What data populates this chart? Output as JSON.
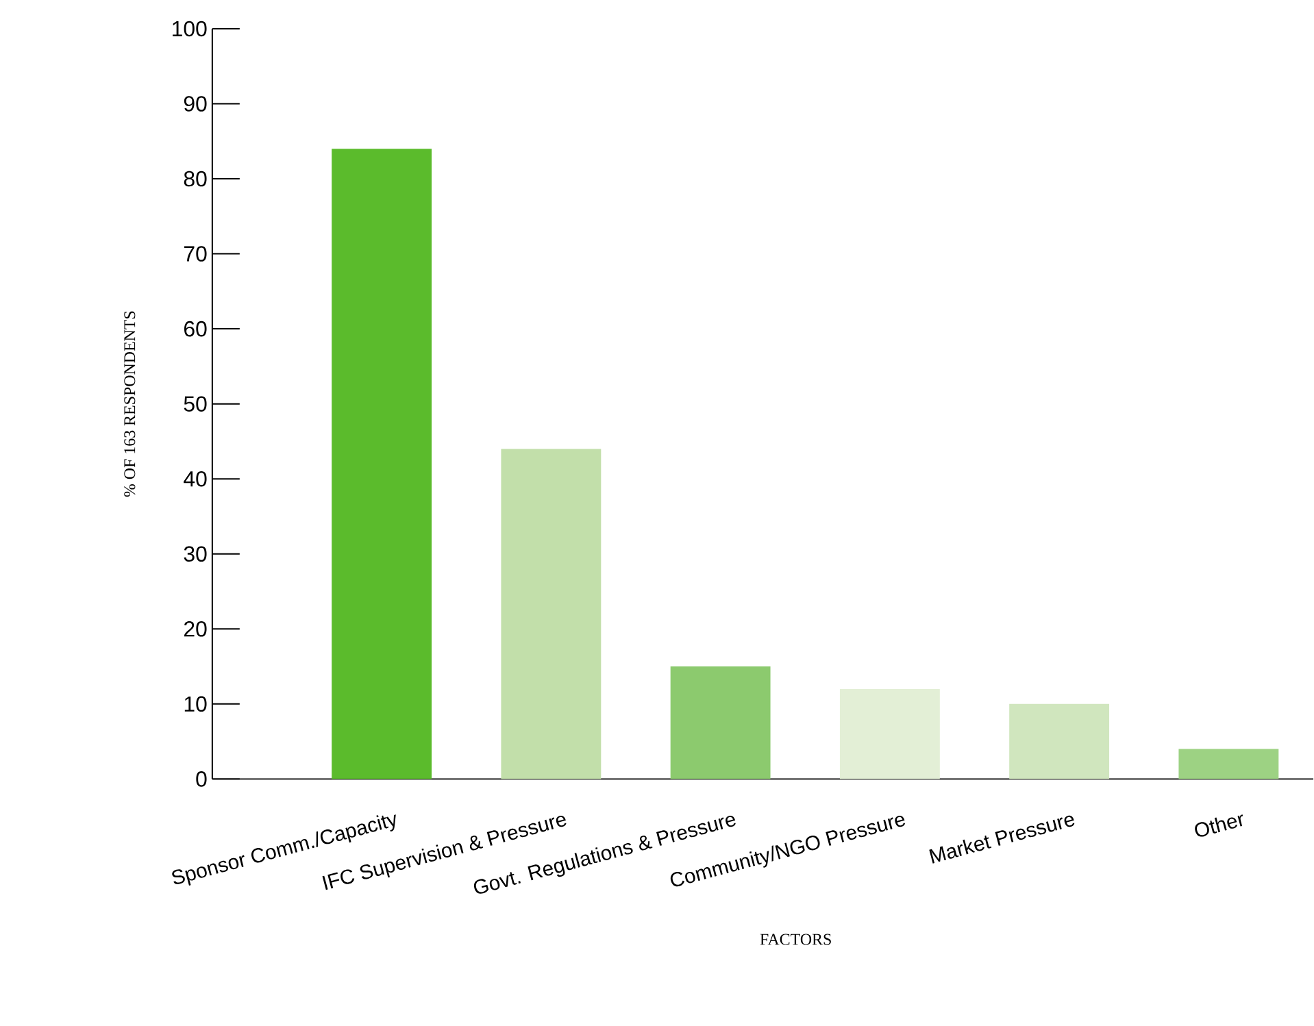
{
  "chart_data": {
    "type": "bar",
    "xlabel": "FACTORS",
    "ylabel": "% OF 163 RESPONDENTS",
    "categories": [
      "Sponsor Comm./Capacity",
      "IFC Supervision & Pressure",
      "Govt. Regulations & Pressure",
      "Community/NGO Pressure",
      "Market Pressure",
      "Other"
    ],
    "values": [
      84,
      44,
      15,
      12,
      10,
      4
    ],
    "colors": [
      "#5bbb2c",
      "#c2dfaa",
      "#8cca6e",
      "#e3efd6",
      "#d0e6be",
      "#9dd283"
    ],
    "ylim": [
      0,
      100
    ],
    "yticks": [
      0,
      10,
      20,
      30,
      40,
      50,
      60,
      70,
      80,
      90,
      100
    ],
    "grid": false
  }
}
